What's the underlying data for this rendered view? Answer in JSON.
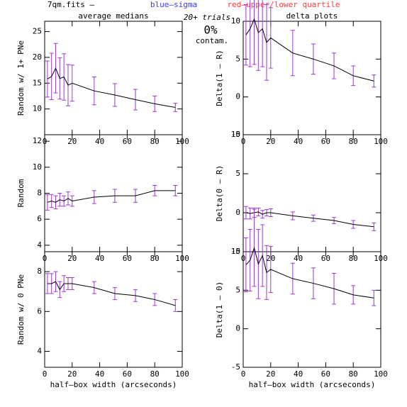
{
  "header": {
    "file": "7qm.fits  –",
    "sigma": "blue–sigma",
    "sigma_color": "#3a3aff",
    "quartile": "red–upper/lower quartile",
    "quartile_color": "#ff3a3a"
  },
  "annotation": {
    "trials": "20+ trials",
    "percent": "0%",
    "contam": "contam."
  },
  "chart_data": [
    {
      "type": "line",
      "title": "average medians",
      "ylabel": "Random w/ 1+ PNe",
      "xlim": [
        0,
        100
      ],
      "xticks": [
        0,
        20,
        40,
        60,
        80,
        100
      ],
      "ylim": [
        5,
        27
      ],
      "yticks": [
        10,
        15,
        20,
        25
      ],
      "x": [
        2,
        5,
        8,
        11,
        14,
        17,
        20,
        36,
        51,
        66,
        80,
        95
      ],
      "values": [
        15.8,
        16.3,
        17.9,
        15.9,
        16.2,
        14.6,
        15.0,
        13.5,
        12.7,
        11.8,
        11.0,
        10.3
      ],
      "errors": [
        3.5,
        4.5,
        4.8,
        4.0,
        4.5,
        4.0,
        3.5,
        2.7,
        2.2,
        2.0,
        1.5,
        0.8
      ],
      "color": "#000000",
      "error_color": "#9a3ad0"
    },
    {
      "type": "line",
      "title": "delta plots",
      "ylabel": "Delta(1 – R)",
      "xlim": [
        0,
        100
      ],
      "xticks": [
        0,
        20,
        40,
        60,
        80,
        100
      ],
      "ylim": [
        -5,
        10
      ],
      "yticks": [
        -5,
        0,
        5,
        10
      ],
      "x": [
        2,
        5,
        8,
        11,
        14,
        17,
        20,
        36,
        51,
        66,
        80,
        95
      ],
      "values": [
        8.2,
        9.0,
        10.3,
        8.5,
        9.0,
        7.2,
        7.8,
        5.8,
        5.0,
        4.1,
        2.8,
        2.1
      ],
      "errors": [
        4,
        5,
        6,
        5,
        5,
        5,
        4,
        3,
        2,
        1.7,
        1.3,
        0.8
      ],
      "color": "#000000",
      "error_color": "#9a3ad0"
    },
    {
      "type": "line",
      "ylabel": "Random",
      "xlim": [
        0,
        100
      ],
      "xticks": [
        0,
        20,
        40,
        60,
        80,
        100
      ],
      "ylim": [
        3.5,
        12.5
      ],
      "yticks": [
        4,
        6,
        8,
        10,
        12
      ],
      "x": [
        2,
        5,
        8,
        11,
        14,
        17,
        20,
        36,
        51,
        66,
        80,
        95
      ],
      "values": [
        7.3,
        7.4,
        7.3,
        7.5,
        7.4,
        7.6,
        7.4,
        7.7,
        7.8,
        7.8,
        8.2,
        8.2
      ],
      "errors": [
        0.6,
        0.5,
        0.5,
        0.5,
        0.4,
        0.5,
        0.4,
        0.5,
        0.5,
        0.5,
        0.4,
        0.4
      ],
      "color": "#000000",
      "error_color": "#9a3ad0"
    },
    {
      "type": "line",
      "ylabel": "Delta(0 – R)",
      "xlim": [
        0,
        100
      ],
      "xticks": [
        0,
        20,
        40,
        60,
        80,
        100
      ],
      "ylim": [
        -5,
        10
      ],
      "yticks": [
        -5,
        0,
        5,
        10
      ],
      "x": [
        2,
        5,
        8,
        11,
        14,
        17,
        20,
        36,
        51,
        66,
        80,
        95
      ],
      "values": [
        0,
        -0.1,
        0,
        0.1,
        -0.2,
        0,
        0,
        -0.4,
        -0.7,
        -1,
        -1.5,
        -1.8
      ],
      "errors": [
        0.8,
        0.7,
        0.6,
        0.5,
        0.5,
        0.4,
        0.5,
        0.5,
        0.4,
        0.4,
        0.5,
        0.5
      ],
      "color": "#000000",
      "error_color": "#9a3ad0"
    },
    {
      "type": "line",
      "ylabel": "Random w/ 0 PNe",
      "xlabel": "half–box width (arcseconds)",
      "xlim": [
        0,
        100
      ],
      "xticks": [
        0,
        20,
        40,
        60,
        80,
        100
      ],
      "ylim": [
        3.2,
        9
      ],
      "yticks": [
        4,
        6,
        8
      ],
      "x": [
        2,
        5,
        8,
        11,
        14,
        17,
        20,
        36,
        51,
        66,
        80,
        95
      ],
      "values": [
        7.4,
        7.4,
        7.5,
        7.1,
        7.4,
        7.4,
        7.4,
        7.2,
        6.9,
        6.8,
        6.6,
        6.3
      ],
      "errors": [
        0.5,
        0.5,
        0.5,
        0.4,
        0.4,
        0.3,
        0.3,
        0.3,
        0.3,
        0.3,
        0.3,
        0.3
      ],
      "color": "#000000",
      "error_color": "#9a3ad0"
    },
    {
      "type": "line",
      "ylabel": "Delta(1 – 0)",
      "xlabel": "half–box width (arcseconds)",
      "xlim": [
        0,
        100
      ],
      "xticks": [
        0,
        20,
        40,
        60,
        80,
        100
      ],
      "ylim": [
        -5,
        10
      ],
      "yticks": [
        -5,
        0,
        5,
        10
      ],
      "x": [
        2,
        5,
        8,
        11,
        14,
        17,
        20,
        36,
        51,
        66,
        80,
        95
      ],
      "values": [
        8.3,
        8.9,
        10.5,
        8.4,
        9.5,
        7.3,
        7.7,
        6.5,
        5.9,
        5.2,
        4.4,
        4.0
      ],
      "errors": [
        3.5,
        4,
        5,
        4.5,
        4,
        3.5,
        3,
        2,
        2,
        2,
        1.2,
        1
      ],
      "color": "#000000",
      "error_color": "#9a3ad0"
    }
  ]
}
